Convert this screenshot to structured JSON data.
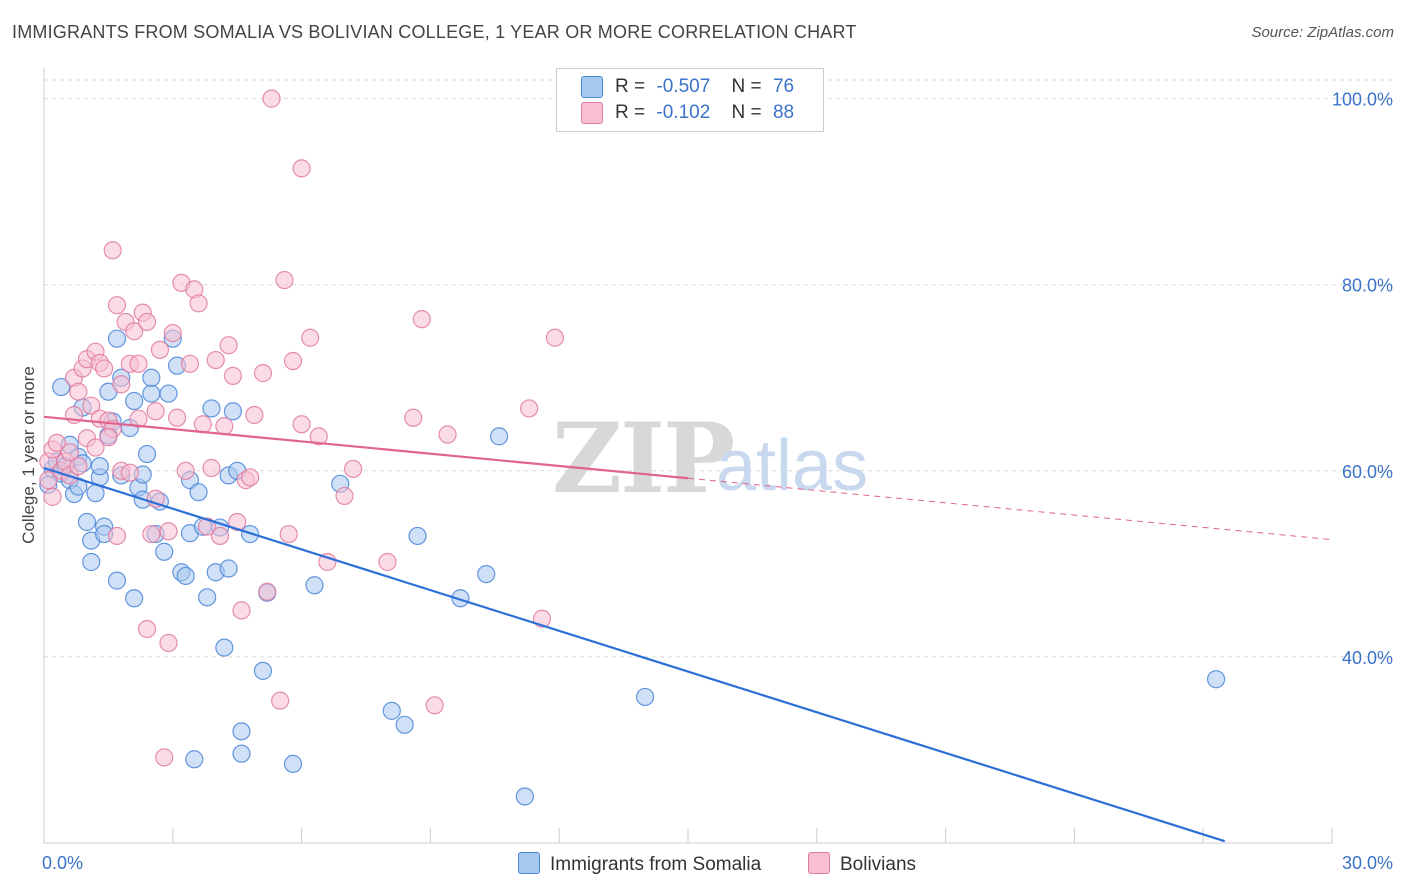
{
  "title": "IMMIGRANTS FROM SOMALIA VS BOLIVIAN COLLEGE, 1 YEAR OR MORE CORRELATION CHART",
  "source": "Source: ZipAtlas.com",
  "watermark": {
    "zip": "ZIP",
    "atlas": "atlas"
  },
  "legend": {
    "rows": [
      {
        "r_label": "R =",
        "r_value": "-0.507",
        "n_label": "N =",
        "n_value": "76"
      },
      {
        "r_label": "R =",
        "r_value": "-0.102",
        "n_label": "N =",
        "n_value": "88"
      }
    ]
  },
  "colors": {
    "somalia_fill": "#a9c8f0",
    "somalia_stroke": "#4a85d8",
    "somalia_line": "#2c6fd6",
    "bolivia_fill": "#f7bfd1",
    "bolivia_stroke": "#e07aa0",
    "bolivia_line": "#e0648f",
    "grid": "#d9d9d9",
    "tick_label": "#3b73c8"
  },
  "chart_data": {
    "type": "scatter",
    "title": "IMMIGRANTS FROM SOMALIA VS BOLIVIAN COLLEGE, 1 YEAR OR MORE CORRELATION CHART",
    "xlabel": "",
    "ylabel": "College, 1 year or more",
    "xlim": [
      0,
      30
    ],
    "ylim": [
      20,
      102
    ],
    "x_tick_labels": [
      "0.0%",
      "30.0%"
    ],
    "y_ticks": [
      40,
      60,
      80,
      100
    ],
    "y_tick_labels": [
      "40.0%",
      "60.0%",
      "80.0%",
      "100.0%"
    ],
    "grid": true,
    "legend_position": "top-center",
    "series": [
      {
        "name": "Immigrants from Somalia",
        "r": -0.507,
        "n": 76,
        "trend": {
          "x": [
            0,
            27.5
          ],
          "y": [
            60.3,
            20.2
          ],
          "dashed_from": null
        },
        "points": [
          [
            0.1,
            58.5
          ],
          [
            0.2,
            60.2
          ],
          [
            0.3,
            61.0
          ],
          [
            0.4,
            59.7
          ],
          [
            0.4,
            69.0
          ],
          [
            0.5,
            60.5
          ],
          [
            0.6,
            59.0
          ],
          [
            0.6,
            62.8
          ],
          [
            0.7,
            57.5
          ],
          [
            0.8,
            58.3
          ],
          [
            0.8,
            61.5
          ],
          [
            0.9,
            66.8
          ],
          [
            0.9,
            60.8
          ],
          [
            1.0,
            54.5
          ],
          [
            1.1,
            52.5
          ],
          [
            1.1,
            50.2
          ],
          [
            1.2,
            57.6
          ],
          [
            1.3,
            59.3
          ],
          [
            1.3,
            60.5
          ],
          [
            1.4,
            54.0
          ],
          [
            1.4,
            53.2
          ],
          [
            1.5,
            63.8
          ],
          [
            1.5,
            68.5
          ],
          [
            1.6,
            65.3
          ],
          [
            1.7,
            48.2
          ],
          [
            1.7,
            74.2
          ],
          [
            1.8,
            59.5
          ],
          [
            1.8,
            70.0
          ],
          [
            2.0,
            64.6
          ],
          [
            2.1,
            67.5
          ],
          [
            2.1,
            46.3
          ],
          [
            2.2,
            58.2
          ],
          [
            2.3,
            59.6
          ],
          [
            2.3,
            56.9
          ],
          [
            2.4,
            61.8
          ],
          [
            2.5,
            68.3
          ],
          [
            2.5,
            70.0
          ],
          [
            2.6,
            53.2
          ],
          [
            2.7,
            56.7
          ],
          [
            2.8,
            51.3
          ],
          [
            2.9,
            68.3
          ],
          [
            3.0,
            74.2
          ],
          [
            3.1,
            71.3
          ],
          [
            3.2,
            49.1
          ],
          [
            3.3,
            48.7
          ],
          [
            3.4,
            59.0
          ],
          [
            3.4,
            53.3
          ],
          [
            3.5,
            29.0
          ],
          [
            3.6,
            57.7
          ],
          [
            3.7,
            54.0
          ],
          [
            3.8,
            46.4
          ],
          [
            3.9,
            66.7
          ],
          [
            4.0,
            49.1
          ],
          [
            4.1,
            53.9
          ],
          [
            4.2,
            41.0
          ],
          [
            4.3,
            59.5
          ],
          [
            4.3,
            49.5
          ],
          [
            4.4,
            66.4
          ],
          [
            4.5,
            60.0
          ],
          [
            4.6,
            32.0
          ],
          [
            4.6,
            29.6
          ],
          [
            4.8,
            53.2
          ],
          [
            5.2,
            46.9
          ],
          [
            5.1,
            38.5
          ],
          [
            5.8,
            28.5
          ],
          [
            6.3,
            47.7
          ],
          [
            6.9,
            58.6
          ],
          [
            8.1,
            34.2
          ],
          [
            8.4,
            32.7
          ],
          [
            8.7,
            53.0
          ],
          [
            9.7,
            46.3
          ],
          [
            10.3,
            48.9
          ],
          [
            10.6,
            63.7
          ],
          [
            11.2,
            25.0
          ],
          [
            14.0,
            35.7
          ],
          [
            27.3,
            37.6
          ]
        ]
      },
      {
        "name": "Bolivians",
        "r": -0.102,
        "n": 88,
        "trend": {
          "x": [
            0,
            30
          ],
          "y": [
            65.8,
            52.6
          ],
          "dashed_from": 15.0
        },
        "points": [
          [
            0.1,
            59.0
          ],
          [
            0.1,
            61.0
          ],
          [
            0.2,
            62.3
          ],
          [
            0.3,
            63.0
          ],
          [
            0.4,
            60.0
          ],
          [
            0.5,
            61.0
          ],
          [
            0.6,
            59.5
          ],
          [
            0.6,
            62.0
          ],
          [
            0.7,
            70.0
          ],
          [
            0.7,
            66.0
          ],
          [
            0.8,
            68.5
          ],
          [
            0.8,
            60.5
          ],
          [
            0.9,
            71.0
          ],
          [
            1.0,
            72.0
          ],
          [
            1.0,
            63.5
          ],
          [
            1.1,
            67.0
          ],
          [
            1.2,
            72.8
          ],
          [
            1.2,
            62.5
          ],
          [
            1.3,
            65.6
          ],
          [
            1.3,
            71.6
          ],
          [
            1.4,
            71.0
          ],
          [
            1.5,
            65.4
          ],
          [
            1.6,
            83.7
          ],
          [
            1.6,
            64.5
          ],
          [
            1.7,
            53.0
          ],
          [
            1.7,
            77.8
          ],
          [
            1.8,
            60.0
          ],
          [
            1.8,
            69.3
          ],
          [
            1.9,
            76.0
          ],
          [
            2.0,
            71.5
          ],
          [
            2.0,
            59.8
          ],
          [
            2.1,
            75.0
          ],
          [
            2.2,
            71.5
          ],
          [
            2.2,
            65.6
          ],
          [
            2.3,
            77.0
          ],
          [
            2.4,
            76.0
          ],
          [
            2.4,
            43.0
          ],
          [
            2.5,
            53.2
          ],
          [
            2.6,
            57.0
          ],
          [
            2.6,
            66.4
          ],
          [
            2.7,
            73.0
          ],
          [
            2.8,
            29.2
          ],
          [
            2.9,
            41.5
          ],
          [
            2.9,
            53.5
          ],
          [
            3.0,
            74.8
          ],
          [
            3.1,
            65.7
          ],
          [
            3.2,
            80.2
          ],
          [
            3.3,
            60.0
          ],
          [
            3.4,
            71.5
          ],
          [
            3.5,
            79.5
          ],
          [
            3.6,
            78.0
          ],
          [
            3.7,
            65.0
          ],
          [
            3.8,
            54.0
          ],
          [
            3.9,
            60.3
          ],
          [
            4.0,
            71.9
          ],
          [
            4.1,
            53.0
          ],
          [
            4.2,
            64.8
          ],
          [
            4.3,
            73.5
          ],
          [
            4.4,
            70.2
          ],
          [
            4.5,
            54.5
          ],
          [
            4.6,
            45.0
          ],
          [
            4.7,
            59.0
          ],
          [
            4.8,
            59.3
          ],
          [
            4.9,
            66.0
          ],
          [
            5.1,
            70.5
          ],
          [
            5.2,
            47.0
          ],
          [
            5.3,
            100.0
          ],
          [
            5.5,
            35.3
          ],
          [
            5.6,
            80.5
          ],
          [
            5.7,
            53.2
          ],
          [
            5.8,
            71.8
          ],
          [
            6.0,
            92.5
          ],
          [
            6.0,
            65.0
          ],
          [
            6.2,
            74.3
          ],
          [
            6.4,
            63.7
          ],
          [
            6.6,
            50.2
          ],
          [
            7.0,
            57.3
          ],
          [
            7.2,
            60.2
          ],
          [
            8.0,
            50.2
          ],
          [
            8.6,
            65.7
          ],
          [
            8.8,
            76.3
          ],
          [
            9.1,
            34.8
          ],
          [
            9.4,
            63.9
          ],
          [
            11.3,
            66.7
          ],
          [
            11.6,
            44.1
          ],
          [
            11.9,
            74.3
          ],
          [
            0.2,
            57.2
          ],
          [
            1.5,
            63.6
          ]
        ]
      }
    ]
  },
  "bottom_legend": [
    {
      "label": "Immigrants from Somalia"
    },
    {
      "label": "Bolivians"
    }
  ]
}
